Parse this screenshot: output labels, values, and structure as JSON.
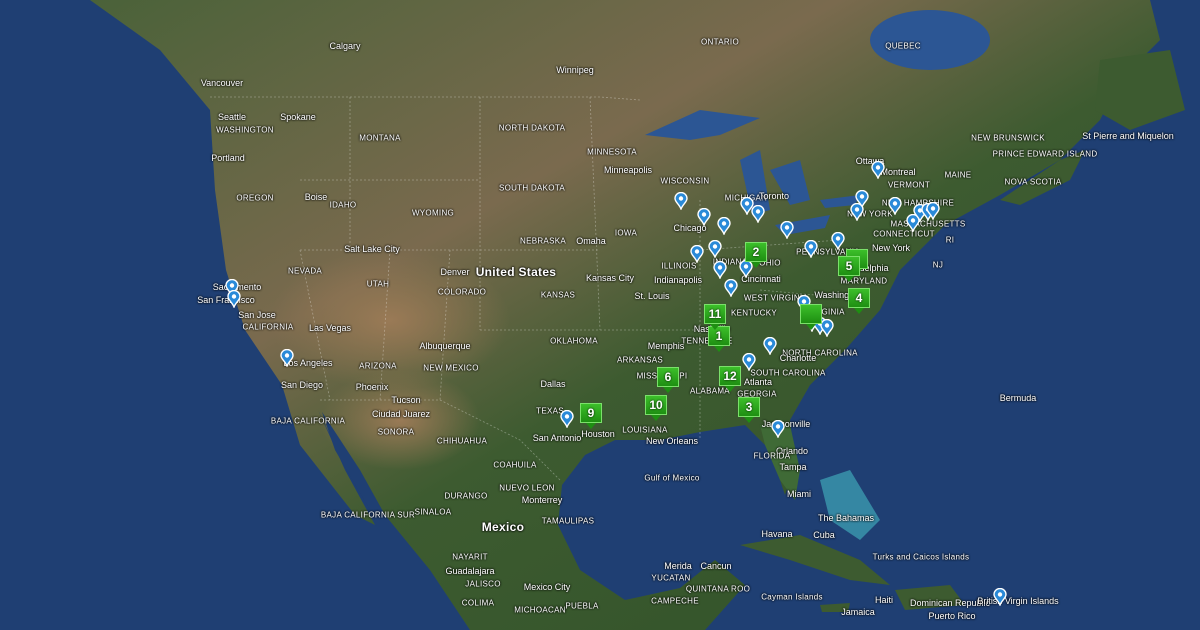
{
  "map": {
    "type": "satellite",
    "ocean_color": "#1d3b6e",
    "land_color": "#3f5a32",
    "cluster_color": "#2aa81a",
    "pin_color": "#2a8ad8"
  },
  "labels": [
    "Calgary",
    "ONTARIO",
    "QUEBEC",
    "Winnipeg",
    "Vancouver",
    "Seattle",
    "WASHINGTON",
    "Spokane",
    "Portland",
    "MONTANA",
    "NORTH DAKOTA",
    "MINNESOTA",
    "Minneapolis",
    "SOUTH DAKOTA",
    "OREGON",
    "IDAHO",
    "WYOMING",
    "Boise",
    "WISCONSIN",
    "MICHIGAN",
    "Toronto",
    "Ottawa",
    "Montreal",
    "VERMONT",
    "MAINE",
    "NEW BRUNSWICK",
    "PRINCE EDWARD ISLAND",
    "NOVA SCOTIA",
    "St Pierre and Miquelon",
    "NEVADA",
    "UTAH",
    "Salt Lake City",
    "NEBRASKA",
    "Omaha",
    "IOWA",
    "Chicago",
    "ILLINOIS",
    "INDIANA",
    "OHIO",
    "PENNSYLVANIA",
    "New York",
    "Philadelphia",
    "Washington",
    "United States",
    "Denver",
    "COLORADO",
    "KANSAS",
    "Kansas City",
    "St. Louis",
    "Indianapolis",
    "Cincinnati",
    "WEST VIRGINIA",
    "VIRGINIA",
    "KENTUCKY",
    "Nashville",
    "TENNESSEE",
    "NORTH CAROLINA",
    "Charlotte",
    "Memphis",
    "ARKANSAS",
    "OKLAHOMA",
    "Sacramento",
    "San Francisco",
    "San Jose",
    "CALIFORNIA",
    "Las Vegas",
    "ARIZONA",
    "NEW MEXICO",
    "Albuquerque",
    "Los Angeles",
    "San Diego",
    "Phoenix",
    "Tucson",
    "Dallas",
    "TEXAS",
    "MISSISSIPPI",
    "ALABAMA",
    "Atlanta",
    "GEORGIA",
    "SOUTH CAROLINA",
    "LOUISIANA",
    "Houston",
    "San Antonio",
    "New Orleans",
    "Jacksonville",
    "Orlando",
    "Tampa",
    "Miami",
    "FLORIDA",
    "Bermuda",
    "The Bahamas",
    "Havana",
    "Cuba",
    "Turks and Caicos Islands",
    "Cayman Islands",
    "Jamaica",
    "Haiti",
    "Dominican Republic",
    "Puerto Rico",
    "British Virgin Islands",
    "Mexico",
    "BAJA CALIFORNIA",
    "BAJA CALIFORNIA SUR",
    "SONORA",
    "CHIHUAHUA",
    "Ciudad Juarez",
    "COAHUILA",
    "NUEVO LEON",
    "Monterrey",
    "TAMAULIPAS",
    "DURANGO",
    "SINALOA",
    "NAYARIT",
    "Guadalajara",
    "JALISCO",
    "Mexico City",
    "COLIMA",
    "MICHOACAN",
    "PUEBLA",
    "Merida",
    "YUCATAN",
    "CAMPECHE",
    "Cancun",
    "QUINTANA ROO",
    "Gulf of Mexico",
    "NEW HAMPSHIRE",
    "MASSACHUSETTS",
    "CONNECTICUT",
    "RI",
    "NJ",
    "MARYLAND",
    "NEW YORK"
  ],
  "clusters": [
    "1",
    "2",
    "3",
    "4",
    "5",
    "6",
    "9",
    "10",
    "11",
    "12",
    "",
    ""
  ]
}
